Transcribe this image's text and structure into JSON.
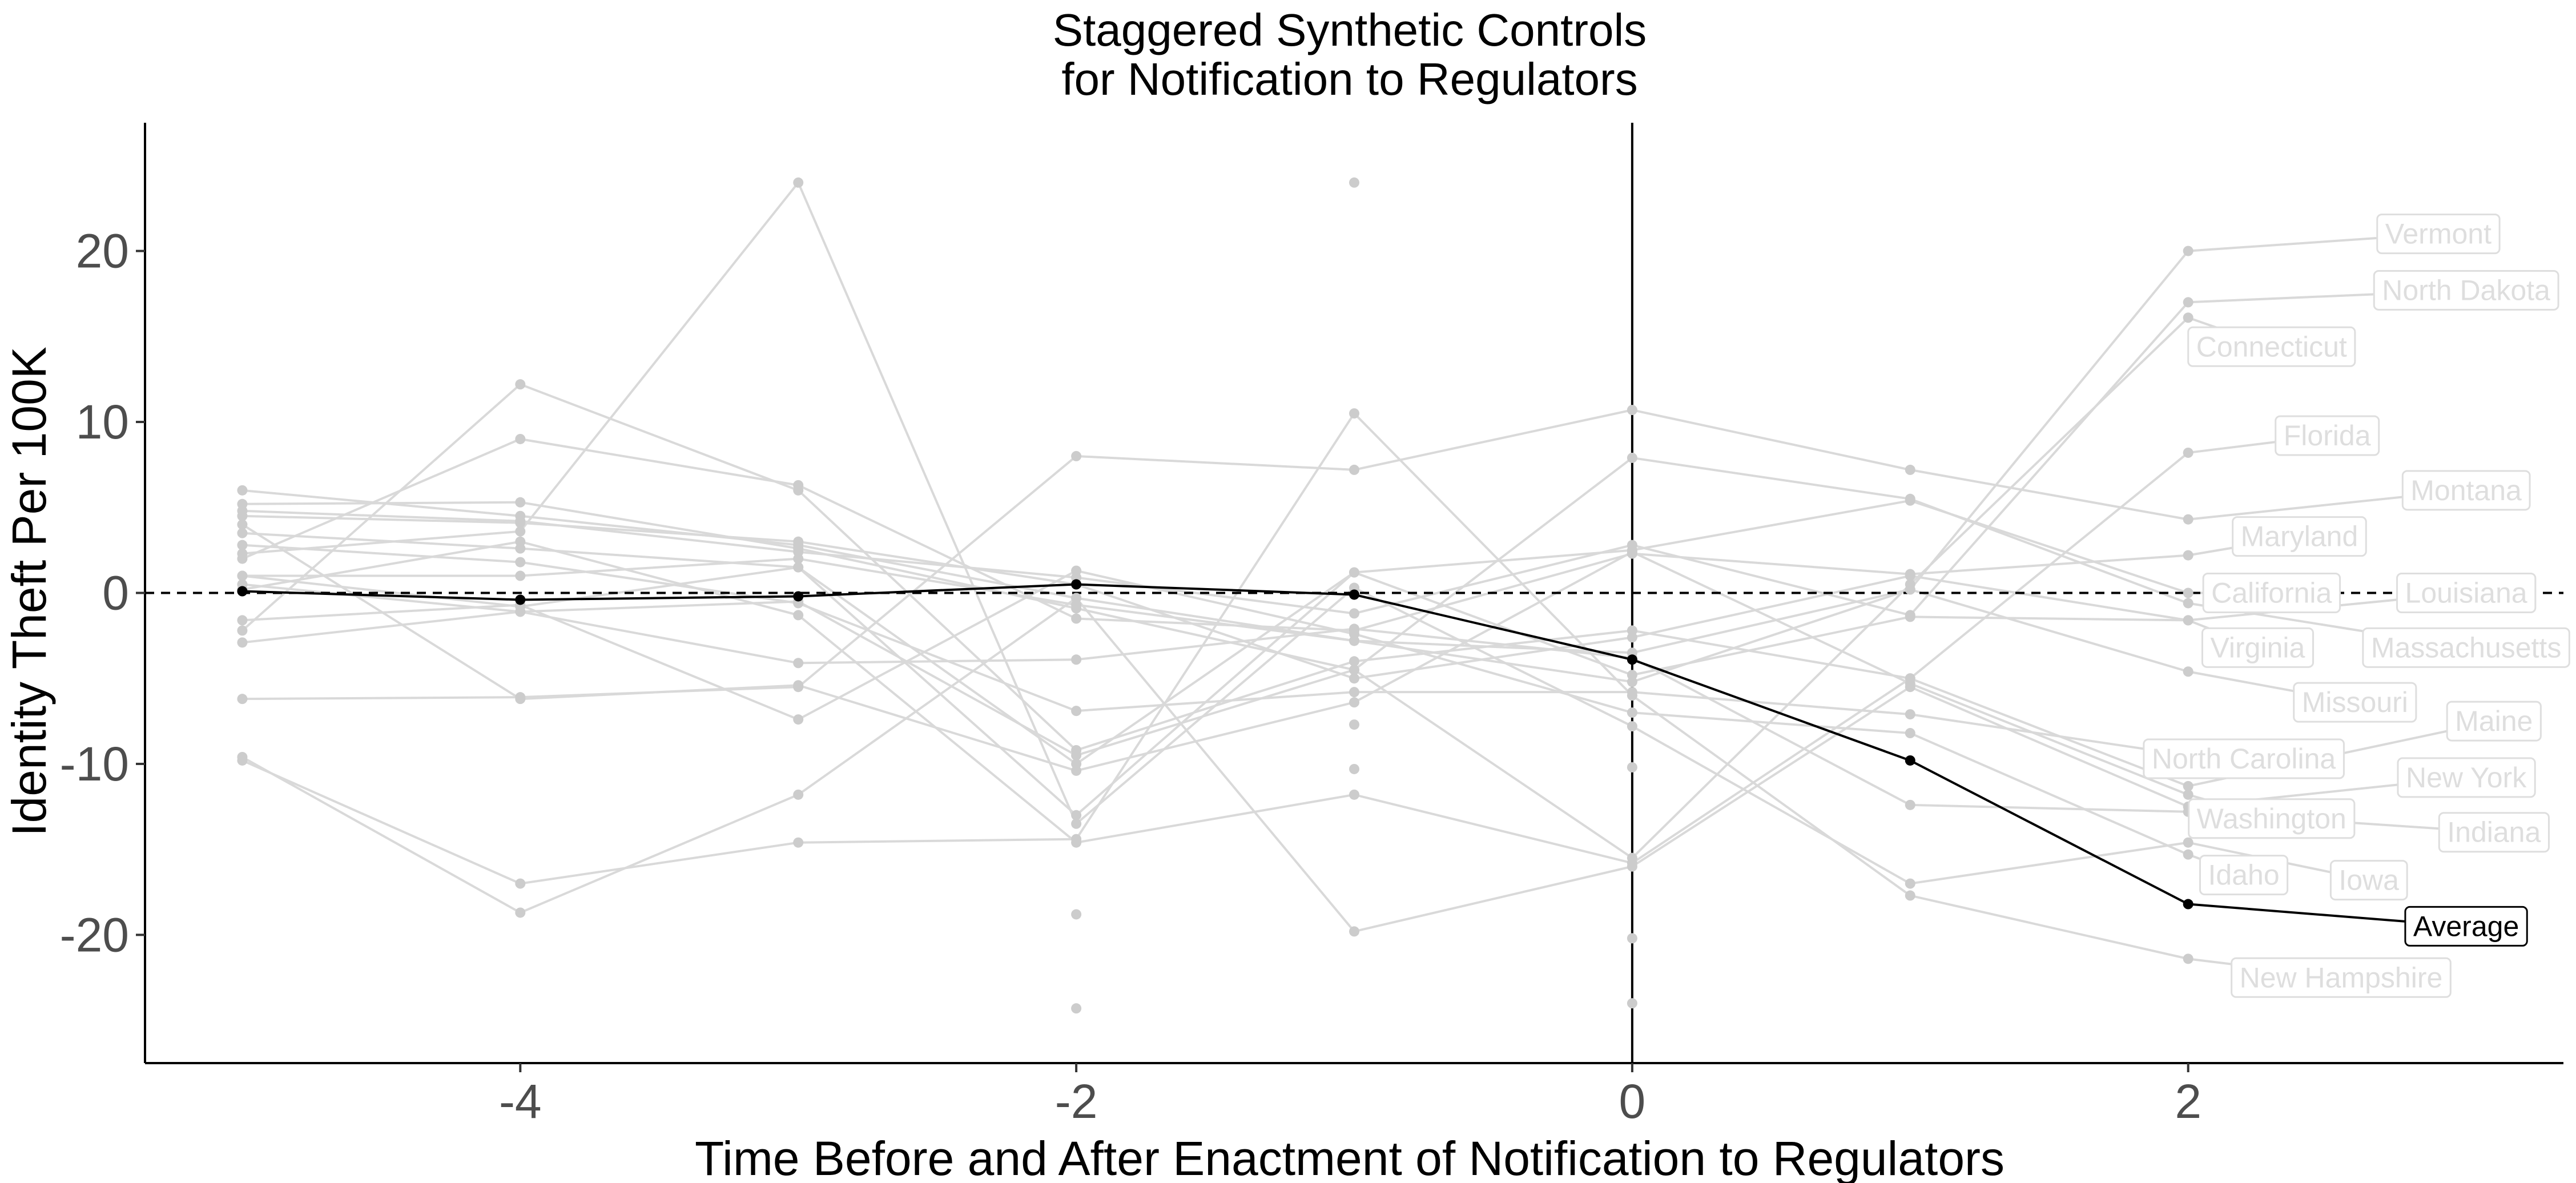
{
  "chart_data": {
    "type": "line",
    "title_lines": [
      "Staggered Synthetic Controls",
      "for Notification to Regulators"
    ],
    "xlabel": "Time Before and After Enactment of Notification to Regulators",
    "ylabel": "Identity Theft Per 100K",
    "xlim": [
      -5.35,
      3.35
    ],
    "ylim": [
      -27.5,
      27.5
    ],
    "x_ticks": [
      -4,
      -2,
      0,
      2
    ],
    "y_ticks": [
      -20,
      -10,
      0,
      10,
      20
    ],
    "grid": false,
    "reference_lines": {
      "horizontal_dashed": 0,
      "vertical_solid": 0
    },
    "colors": {
      "states": "#d9d9d9",
      "state_points": "#cccccc",
      "average": "#000000",
      "label_text": "#dedede"
    },
    "x": [
      -5,
      -4,
      -3,
      -2,
      -1,
      0,
      1,
      2
    ],
    "series": [
      {
        "name": "Vermont",
        "values": [
          6.0,
          4.5,
          2.8,
          -0.3,
          -2.8,
          -3.5,
          0.2,
          20.0
        ],
        "label_at": [
          2.9,
          21.0
        ]
      },
      {
        "name": "North Dakota",
        "values": [
          4.8,
          4.2,
          2.4,
          0.9,
          -1.2,
          2.8,
          -1.3,
          17.0
        ],
        "label_at": [
          3.0,
          17.7
        ]
      },
      {
        "name": "Connecticut",
        "values": [
          0.5,
          -1.1,
          -0.5,
          -9.5,
          -4.5,
          -15.5,
          0.5,
          16.1
        ],
        "label_at": [
          2.3,
          14.4
        ]
      },
      {
        "name": "Florida",
        "values": [
          -2.2,
          12.2,
          6.0,
          -9.2,
          -4.0,
          -2.2,
          -5.0,
          8.2
        ],
        "label_at": [
          2.5,
          9.2
        ]
      },
      {
        "name": "Montana",
        "values": [
          -6.2,
          -6.1,
          -5.5,
          8.0,
          7.2,
          10.7,
          7.2,
          4.3
        ],
        "label_at": [
          3.0,
          6.0
        ]
      },
      {
        "name": "Maryland",
        "values": [
          2.0,
          9.0,
          6.3,
          -1.5,
          -2.2,
          2.3,
          1.1,
          2.2
        ],
        "label_at": [
          2.4,
          3.3
        ]
      },
      {
        "name": "California",
        "values": [
          1.0,
          -0.8,
          1.5,
          -10.0,
          1.2,
          2.5,
          5.4,
          0.0
        ],
        "label_at": [
          2.3,
          0.0
        ]
      },
      {
        "name": "Louisiana",
        "values": [
          4.5,
          4.1,
          3.0,
          0.5,
          -5.0,
          -2.6,
          1.0,
          -1.6
        ],
        "label_at": [
          3.0,
          0.0
        ]
      },
      {
        "name": "Virginia",
        "values": [
          3.5,
          2.6,
          1.5,
          -13.0,
          1.2,
          -4.8,
          -1.4,
          -1.6
        ],
        "label_at": [
          2.25,
          -3.2
        ]
      },
      {
        "name": "Massachusetts",
        "values": [
          5.2,
          5.3,
          2.6,
          -0.9,
          -4.5,
          7.9,
          5.5,
          -0.6
        ],
        "label_at": [
          3.0,
          -3.2
        ]
      },
      {
        "name": "Missouri",
        "values": [
          1.0,
          1.0,
          2.0,
          -0.7,
          -2.8,
          -5.2,
          0.2,
          -4.6
        ],
        "label_at": [
          2.6,
          -6.4
        ]
      },
      {
        "name": "Maine",
        "values": [
          0.2,
          3.0,
          -1.3,
          -14.6,
          -11.8,
          -15.8,
          -5.0,
          -11.3
        ],
        "label_at": [
          3.1,
          -7.5
        ]
      },
      {
        "name": "North Carolina",
        "values": [
          2.8,
          1.8,
          -0.6,
          -6.9,
          -5.8,
          -5.8,
          -7.1,
          -9.5
        ],
        "label_at": [
          2.2,
          -9.7
        ]
      },
      {
        "name": "New York",
        "values": [
          -9.6,
          -18.7,
          -11.8,
          -0.3,
          -19.8,
          -16.0,
          -5.5,
          -12.5
        ],
        "label_at": [
          3.0,
          -10.8
        ]
      },
      {
        "name": "Washington",
        "values": [
          4.0,
          -6.2,
          -5.4,
          -10.4,
          -6.4,
          2.4,
          -5.3,
          -11.8
        ],
        "label_at": [
          2.3,
          -13.2
        ]
      },
      {
        "name": "Indiana",
        "values": [
          -2.9,
          -1.1,
          -4.1,
          -3.9,
          -2.1,
          -3.8,
          -12.4,
          -12.8
        ],
        "label_at": [
          3.1,
          -14.0
        ]
      },
      {
        "name": "Idaho",
        "values": [
          -1.6,
          -0.7,
          -7.4,
          1.3,
          -2.4,
          -7.0,
          -8.2,
          -15.3
        ],
        "label_at": [
          2.2,
          -16.5
        ]
      },
      {
        "name": "Iowa",
        "values": [
          2.3,
          3.6,
          24.0,
          -13.5,
          0.3,
          -7.8,
          -17.0,
          -14.6
        ],
        "label_at": [
          2.65,
          -16.8
        ]
      },
      {
        "name": "New Hampshire",
        "values": [
          -9.8,
          -17.0,
          -14.6,
          -14.4,
          10.5,
          -6.0,
          -17.7,
          -21.4
        ],
        "label_at": [
          2.55,
          -22.5
        ]
      }
    ],
    "extra_points": [
      {
        "x": -1,
        "y": 24.0
      },
      {
        "x": -1,
        "y": -7.7
      },
      {
        "x": 0,
        "y": -20.2
      },
      {
        "x": 0,
        "y": -24.0
      },
      {
        "x": 0,
        "y": -10.2
      },
      {
        "x": -2,
        "y": -18.8
      },
      {
        "x": -2,
        "y": -24.3
      },
      {
        "x": -1,
        "y": -10.3
      }
    ],
    "average": {
      "name": "Average",
      "values": [
        0.1,
        -0.4,
        -0.2,
        0.5,
        -0.1,
        -3.9,
        -9.8,
        -18.2
      ],
      "label_at": [
        3.0,
        -19.5
      ]
    }
  }
}
